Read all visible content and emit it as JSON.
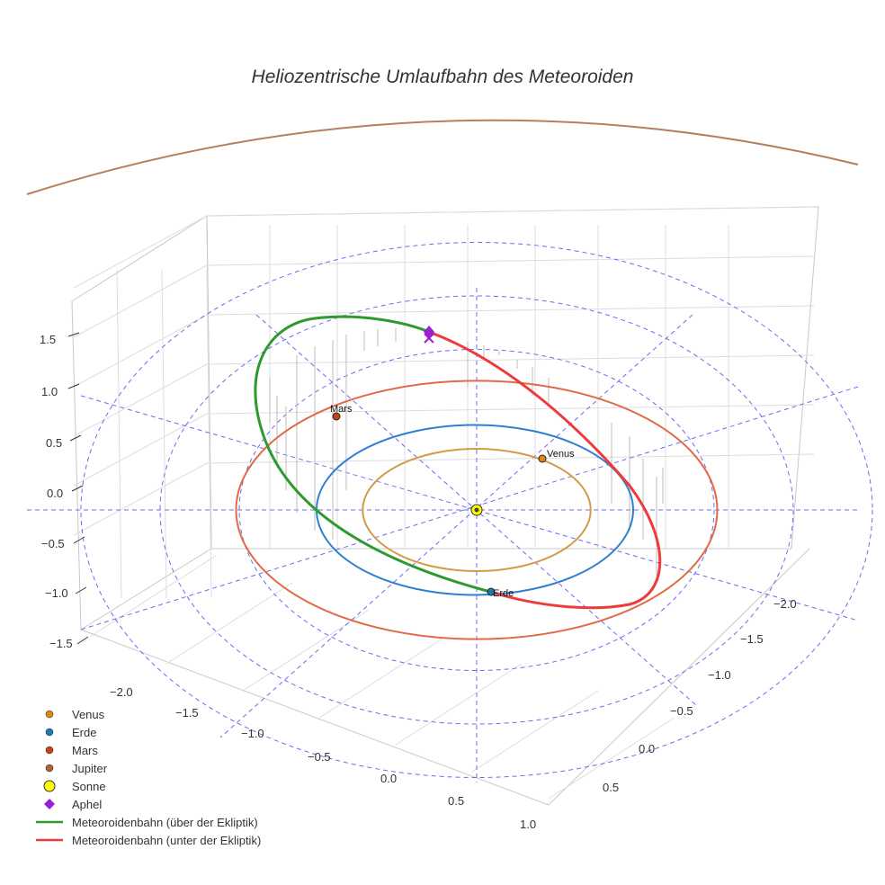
{
  "chart_data": {
    "type": "scatter3d",
    "title": "Heliozentrische Umlaufbahn des Meteoroiden",
    "axes": {
      "x_ticks": [
        "−2.0",
        "−1.5",
        "−1.0",
        "−0.5",
        "0.0",
        "0.5",
        "1.0"
      ],
      "y_ticks": [
        "−2.0",
        "−1.5",
        "−1.0",
        "−0.5",
        "0.0",
        "0.5"
      ],
      "z_ticks": [
        "1.5",
        "1.0",
        "0.5",
        "0.0",
        "−0.5",
        "−1.0",
        "−1.5"
      ]
    },
    "orbits": [
      {
        "name": "Venus",
        "radius_au": 0.72,
        "color": "#d49a45"
      },
      {
        "name": "Erde",
        "radius_au": 1.0,
        "color": "#2f7fd0"
      },
      {
        "name": "Mars",
        "radius_au": 1.52,
        "color": "#e06a45"
      },
      {
        "name": "Jupiter",
        "radius_au": 5.2,
        "color": "#b5805e"
      }
    ],
    "ecliptic_reference_circles_au": [
      1.5,
      2.0,
      2.5
    ],
    "planets": [
      {
        "name": "Venus",
        "label": "Venus",
        "color": "#d88a16"
      },
      {
        "name": "Erde",
        "label": "Erde",
        "color": "#1f77b4"
      },
      {
        "name": "Mars",
        "label": "Mars",
        "color": "#c8421a"
      }
    ],
    "sun": {
      "name": "Sonne",
      "color": "#ffff00"
    },
    "aphel": {
      "name": "Aphel",
      "color": "#9a1ed6"
    },
    "meteoroid": {
      "above_label": "Meteoroidenbahn (über der Ekliptik)",
      "below_label": "Meteoroidenbahn (unter der Ekliptik)",
      "above_color": "#2e9a2e",
      "below_color": "#ee3a3a"
    }
  },
  "legend": [
    {
      "label": "Venus",
      "symbol": "dot",
      "color": "#d88a16"
    },
    {
      "label": "Erde",
      "symbol": "dot",
      "color": "#1f77b4"
    },
    {
      "label": "Mars",
      "symbol": "dot",
      "color": "#c8421a"
    },
    {
      "label": "Jupiter",
      "symbol": "dot",
      "color": "#b0603a"
    },
    {
      "label": "Sonne",
      "symbol": "sun",
      "color": "#ffff00"
    },
    {
      "label": "Aphel",
      "symbol": "diamond",
      "color": "#9a1ed6"
    },
    {
      "label": "Meteoroidenbahn (über der Ekliptik)",
      "symbol": "line",
      "color": "#2e9a2e"
    },
    {
      "label": "Meteoroidenbahn (unter der Ekliptik)",
      "symbol": "line",
      "color": "#ee3a3a"
    }
  ]
}
